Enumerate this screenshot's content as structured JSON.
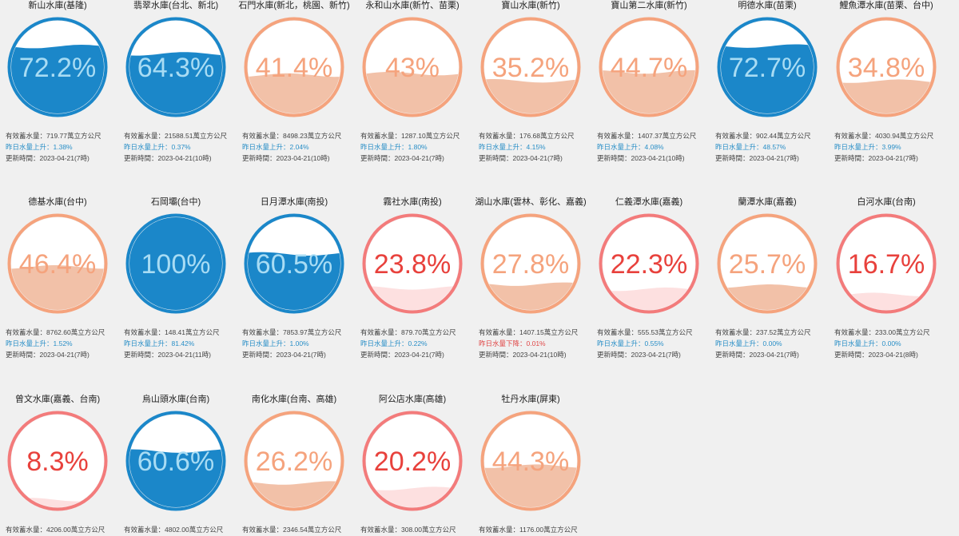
{
  "labels": {
    "storage_prefix": "有效蓄水量：",
    "storage_unit": "萬立方公尺",
    "rise_prefix": "昨日水量上升：",
    "fall_prefix": "昨日水量下降：",
    "update_prefix": "更新時間：",
    "percent_suffix": "%"
  },
  "colors": {
    "blue": {
      "ring": "#1b87c9",
      "fill": "#1b87c9",
      "text": "#a8dcf4"
    },
    "orange": {
      "ring": "#f5a37d",
      "fill": "#f2c1a8",
      "text": "#f5a37d"
    },
    "red": {
      "ring": "#f37b7b",
      "fill": "#fde0e0",
      "text": "#e8413c"
    }
  },
  "reservoirs": [
    {
      "name": "新山水庫(基隆)",
      "percent": "72.2",
      "level": 0.722,
      "scheme": "blue",
      "storage": "719.77",
      "change_dir": "up",
      "change": "1.38%",
      "updated": "2023-04-21(7時)"
    },
    {
      "name": "翡翠水庫(台北、新北)",
      "percent": "64.3",
      "level": 0.643,
      "scheme": "blue",
      "storage": "21588.51",
      "change_dir": "up",
      "change": "0.37%",
      "updated": "2023-04-21(10時)"
    },
    {
      "name": "石門水庫(新北，桃園、新竹)",
      "percent": "41.4",
      "level": 0.414,
      "scheme": "orange",
      "storage": "8498.23",
      "change_dir": "up",
      "change": "2.04%",
      "updated": "2023-04-21(10時)"
    },
    {
      "name": "永和山水庫(新竹、苗栗)",
      "percent": "43",
      "level": 0.43,
      "scheme": "orange",
      "storage": "1287.10",
      "change_dir": "up",
      "change": "1.80%",
      "updated": "2023-04-21(7時)"
    },
    {
      "name": "寶山水庫(新竹)",
      "percent": "35.2",
      "level": 0.352,
      "scheme": "orange",
      "storage": "176.68",
      "change_dir": "up",
      "change": "4.15%",
      "updated": "2023-04-21(7時)"
    },
    {
      "name": "寶山第二水庫(新竹)",
      "percent": "44.7",
      "level": 0.447,
      "scheme": "orange",
      "storage": "1407.37",
      "change_dir": "up",
      "change": "4.08%",
      "updated": "2023-04-21(10時)"
    },
    {
      "name": "明德水庫(苗栗)",
      "percent": "72.7",
      "level": 0.727,
      "scheme": "blue",
      "storage": "902.44",
      "change_dir": "up",
      "change": "48.57%",
      "updated": "2023-04-21(7時)"
    },
    {
      "name": "鯉魚潭水庫(苗栗、台中)",
      "percent": "34.8",
      "level": 0.348,
      "scheme": "orange",
      "storage": "4030.94",
      "change_dir": "up",
      "change": "3.99%",
      "updated": "2023-04-21(7時)"
    },
    {
      "name": "德基水庫(台中)",
      "percent": "46.4",
      "level": 0.464,
      "scheme": "orange",
      "storage": "8762.60",
      "change_dir": "up",
      "change": "1.52%",
      "updated": "2023-04-21(7時)"
    },
    {
      "name": "石岡壩(台中)",
      "percent": "100",
      "level": 1.0,
      "scheme": "blue",
      "storage": "148.41",
      "change_dir": "up",
      "change": "81.42%",
      "updated": "2023-04-21(11時)"
    },
    {
      "name": "日月潭水庫(南投)",
      "percent": "60.5",
      "level": 0.605,
      "scheme": "blue",
      "storage": "7853.97",
      "change_dir": "up",
      "change": "1.00%",
      "updated": "2023-04-21(7時)"
    },
    {
      "name": "霧社水庫(南投)",
      "percent": "23.8",
      "level": 0.238,
      "scheme": "red",
      "storage": "879.70",
      "change_dir": "up",
      "change": "0.22%",
      "updated": "2023-04-21(7時)"
    },
    {
      "name": "湖山水庫(雲林、彰化、嘉義)",
      "percent": "27.8",
      "level": 0.278,
      "scheme": "orange",
      "storage": "1407.15",
      "change_dir": "down",
      "change": "0.01%",
      "updated": "2023-04-21(10時)"
    },
    {
      "name": "仁義潭水庫(嘉義)",
      "percent": "22.3",
      "level": 0.223,
      "scheme": "red",
      "storage": "555.53",
      "change_dir": "up",
      "change": "0.55%",
      "updated": "2023-04-21(7時)"
    },
    {
      "name": "蘭潭水庫(嘉義)",
      "percent": "25.7",
      "level": 0.257,
      "scheme": "orange",
      "storage": "237.52",
      "change_dir": "up",
      "change": "0.00%",
      "updated": "2023-04-21(7時)"
    },
    {
      "name": "白河水庫(台南)",
      "percent": "16.7",
      "level": 0.167,
      "scheme": "red",
      "storage": "233.00",
      "change_dir": "up",
      "change": "0.00%",
      "updated": "2023-04-21(8時)"
    },
    {
      "name": "曾文水庫(嘉義、台南)",
      "percent": "8.3",
      "level": 0.083,
      "scheme": "red",
      "storage": "4206.00"
    },
    {
      "name": "烏山頭水庫(台南)",
      "percent": "60.6",
      "level": 0.606,
      "scheme": "blue",
      "storage": "4802.00"
    },
    {
      "name": "南化水庫(台南、高雄)",
      "percent": "26.2",
      "level": 0.262,
      "scheme": "orange",
      "storage": "2346.54"
    },
    {
      "name": "阿公店水庫(高雄)",
      "percent": "20.2",
      "level": 0.202,
      "scheme": "red",
      "storage": "308.00"
    },
    {
      "name": "牡丹水庫(屏東)",
      "percent": "44.3",
      "level": 0.443,
      "scheme": "orange",
      "storage": "1176.00"
    }
  ]
}
